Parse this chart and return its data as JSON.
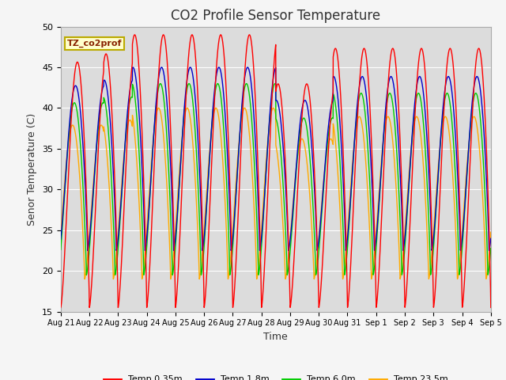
{
  "title": "CO2 Profile Sensor Temperature",
  "xlabel": "Time",
  "ylabel": "Senor Temperature (C)",
  "ylim": [
    15,
    50
  ],
  "num_days": 15,
  "x_tick_labels": [
    "Aug 21",
    "Aug 22",
    "Aug 23",
    "Aug 24",
    "Aug 25",
    "Aug 26",
    "Aug 27",
    "Aug 28",
    "Aug 29",
    "Aug 30",
    "Aug 31",
    "Sep 1",
    "Sep 2",
    "Sep 3",
    "Sep 4",
    "Sep 5"
  ],
  "legend_label": "TZ_co2prof",
  "series_labels": [
    "Temp 0.35m",
    "Temp 1.8m",
    "Temp 6.0m",
    "Temp 23.5m"
  ],
  "series_colors": [
    "#ff0000",
    "#0000cc",
    "#00cc00",
    "#ffaa00"
  ],
  "background_color": "#dcdcdc",
  "grid_color": "#ffffff",
  "fig_bg_color": "#f5f5f5",
  "title_fontsize": 12,
  "axis_fontsize": 9,
  "tick_fontsize": 8,
  "line_width": 1.0,
  "yticks": [
    15,
    20,
    25,
    30,
    35,
    40,
    45,
    50
  ]
}
